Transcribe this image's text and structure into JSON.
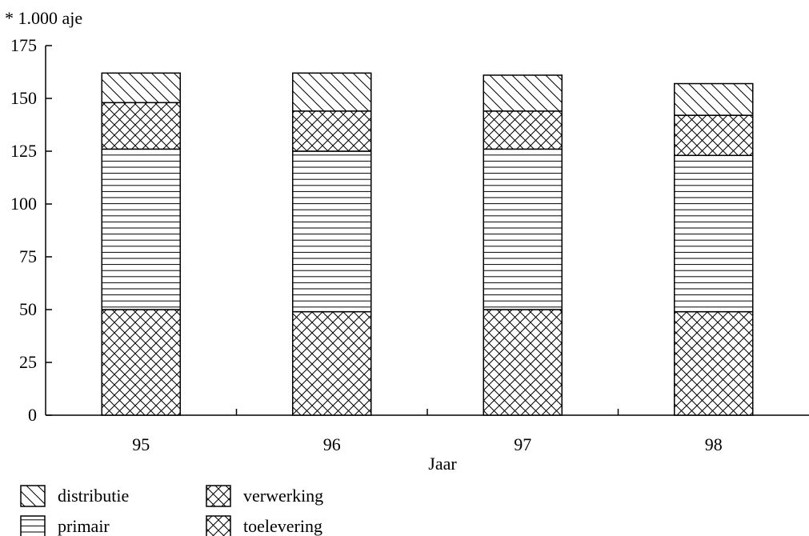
{
  "chart_data": {
    "type": "bar",
    "stacked": true,
    "units_label": "* 1.000 aje",
    "xlabel": "Jaar",
    "categories": [
      "95",
      "96",
      "97",
      "98"
    ],
    "ylim": [
      0,
      175
    ],
    "yticks": [
      0,
      25,
      50,
      75,
      100,
      125,
      150,
      175
    ],
    "grid": false,
    "legend_position": "bottom-left",
    "series": [
      {
        "name": "toelevering",
        "pattern": "crosshatch",
        "values": [
          50,
          49,
          50,
          49
        ]
      },
      {
        "name": "primair",
        "pattern": "horizontal",
        "values": [
          76,
          76,
          76,
          74
        ]
      },
      {
        "name": "verwerking",
        "pattern": "crosshatch",
        "values": [
          22,
          19,
          18,
          19
        ]
      },
      {
        "name": "distributie",
        "pattern": "diagonal",
        "values": [
          14,
          18,
          17,
          15
        ]
      }
    ],
    "legend_order": [
      "distributie",
      "primair",
      "verwerking",
      "toelevering"
    ],
    "colors": {
      "ink": "#000000",
      "fill": "#ffffff"
    }
  }
}
